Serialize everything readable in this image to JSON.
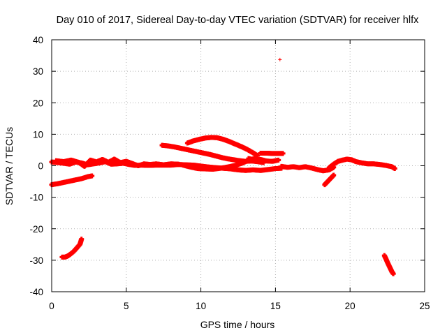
{
  "chart_data": {
    "type": "scatter",
    "title": "Day 010 of 2017, Sidereal Day-to-day VTEC variation (SDTVAR) for receiver hlfx",
    "xlabel": "GPS time / hours",
    "ylabel": "SDTVAR / TECUs",
    "xlim": [
      0,
      25
    ],
    "ylim": [
      -40,
      40
    ],
    "xticks": [
      0,
      5,
      10,
      15,
      20,
      25
    ],
    "yticks": [
      -40,
      -30,
      -20,
      -10,
      0,
      10,
      20,
      30,
      40
    ],
    "grid": true,
    "marker": "+",
    "color": "#ff0000",
    "series": [
      {
        "name": "arc-main-1",
        "values": [
          [
            0.0,
            1.2
          ],
          [
            0.4,
            1.0
          ],
          [
            0.8,
            0.8
          ],
          [
            1.2,
            0.5
          ],
          [
            1.6,
            1.2
          ],
          [
            2.0,
            0.9
          ],
          [
            2.4,
            0.3
          ],
          [
            2.8,
            0.6
          ],
          [
            3.2,
            0.9
          ],
          [
            3.6,
            1.3
          ],
          [
            4.0,
            0.5
          ],
          [
            4.4,
            0.6
          ],
          [
            4.8,
            0.8
          ],
          [
            5.2,
            0.4
          ],
          [
            5.6,
            0.1
          ],
          [
            6.0,
            0.2
          ],
          [
            6.5,
            0.1
          ],
          [
            7.0,
            0.2
          ],
          [
            7.5,
            0.2
          ],
          [
            8.0,
            0.2
          ],
          [
            8.5,
            0.4
          ],
          [
            9.0,
            0.3
          ],
          [
            9.5,
            0.2
          ],
          [
            10.0,
            -0.1
          ],
          [
            10.5,
            -0.4
          ],
          [
            11.0,
            -0.6
          ],
          [
            11.5,
            -0.8
          ],
          [
            12.0,
            -1.0
          ],
          [
            12.5,
            -1.3
          ],
          [
            13.0,
            -1.5
          ],
          [
            13.5,
            -1.3
          ],
          [
            14.0,
            -1.5
          ],
          [
            14.5,
            -1.2
          ],
          [
            15.0,
            -0.9
          ],
          [
            15.4,
            -0.8
          ]
        ]
      },
      {
        "name": "arc-main-2",
        "values": [
          [
            0.3,
            1.6
          ],
          [
            0.8,
            1.3
          ],
          [
            1.3,
            1.8
          ],
          [
            1.8,
            1.1
          ],
          [
            2.2,
            -0.2
          ],
          [
            2.6,
            1.8
          ],
          [
            3.0,
            1.2
          ],
          [
            3.4,
            2.0
          ],
          [
            3.8,
            1.1
          ],
          [
            4.2,
            2.1
          ],
          [
            4.6,
            1.0
          ],
          [
            5.0,
            1.4
          ],
          [
            5.4,
            0.7
          ],
          [
            5.8,
            0.0
          ],
          [
            6.2,
            0.6
          ],
          [
            6.6,
            0.4
          ],
          [
            7.0,
            0.6
          ],
          [
            7.5,
            0.3
          ],
          [
            8.0,
            0.6
          ],
          [
            8.5,
            0.5
          ]
        ]
      },
      {
        "name": "arc-upper",
        "values": [
          [
            7.4,
            6.5
          ],
          [
            7.8,
            6.3
          ],
          [
            8.2,
            6.0
          ],
          [
            8.6,
            5.6
          ],
          [
            9.0,
            5.2
          ],
          [
            9.4,
            4.8
          ],
          [
            9.8,
            4.4
          ],
          [
            10.2,
            4.0
          ],
          [
            10.6,
            3.6
          ],
          [
            11.0,
            3.1
          ],
          [
            11.4,
            2.6
          ],
          [
            11.8,
            2.2
          ],
          [
            12.2,
            1.9
          ],
          [
            12.6,
            1.6
          ],
          [
            13.0,
            1.4
          ],
          [
            13.4,
            1.5
          ],
          [
            13.8,
            1.3
          ],
          [
            14.2,
            1.0
          ]
        ]
      },
      {
        "name": "arc-peak",
        "values": [
          [
            9.1,
            7.2
          ],
          [
            9.5,
            7.9
          ],
          [
            9.9,
            8.4
          ],
          [
            10.3,
            8.8
          ],
          [
            10.7,
            9.0
          ],
          [
            11.1,
            8.9
          ],
          [
            11.5,
            8.4
          ],
          [
            11.9,
            7.7
          ],
          [
            12.3,
            6.9
          ],
          [
            12.7,
            6.1
          ],
          [
            13.1,
            5.2
          ],
          [
            13.5,
            4.1
          ],
          [
            13.8,
            3.2
          ]
        ]
      },
      {
        "name": "arc-center-lower",
        "values": [
          [
            8.8,
            0.2
          ],
          [
            9.3,
            -0.4
          ],
          [
            9.8,
            -0.9
          ],
          [
            10.3,
            -1.0
          ],
          [
            10.8,
            -1.1
          ],
          [
            11.3,
            -0.8
          ],
          [
            11.8,
            -0.4
          ],
          [
            12.3,
            0.1
          ],
          [
            12.8,
            0.9
          ],
          [
            13.3,
            2.0
          ],
          [
            13.8,
            2.4
          ]
        ]
      },
      {
        "name": "arc-1430-1530",
        "values": [
          [
            14.0,
            4.0
          ],
          [
            14.4,
            4.0
          ],
          [
            14.8,
            3.9
          ],
          [
            15.2,
            3.9
          ],
          [
            15.5,
            3.9
          ]
        ]
      },
      {
        "name": "arc-1315-1530",
        "values": [
          [
            13.2,
            2.3
          ],
          [
            13.6,
            1.8
          ],
          [
            14.0,
            2.0
          ],
          [
            14.4,
            1.5
          ],
          [
            14.8,
            1.4
          ],
          [
            15.2,
            1.8
          ]
        ]
      },
      {
        "name": "arc-1530-1900",
        "values": [
          [
            15.4,
            -0.2
          ],
          [
            15.8,
            -0.5
          ],
          [
            16.2,
            -0.3
          ],
          [
            16.6,
            -0.6
          ],
          [
            17.0,
            -0.3
          ],
          [
            17.4,
            -0.7
          ],
          [
            17.8,
            -1.2
          ],
          [
            18.2,
            -1.6
          ],
          [
            18.6,
            -1.3
          ],
          [
            18.9,
            -0.5
          ]
        ]
      },
      {
        "name": "arc-1830-1900-neg",
        "values": [
          [
            18.3,
            -6.0
          ],
          [
            18.5,
            -5.0
          ],
          [
            18.7,
            -4.0
          ],
          [
            18.9,
            -3.0
          ]
        ]
      },
      {
        "name": "arc-1800-2300",
        "values": [
          [
            18.6,
            -0.6
          ],
          [
            18.9,
            0.5
          ],
          [
            19.2,
            1.4
          ],
          [
            19.5,
            1.8
          ],
          [
            19.8,
            2.1
          ],
          [
            20.1,
            1.9
          ],
          [
            20.4,
            1.3
          ],
          [
            20.8,
            0.9
          ],
          [
            21.2,
            0.6
          ],
          [
            21.6,
            0.6
          ],
          [
            22.0,
            0.4
          ],
          [
            22.4,
            0.1
          ],
          [
            22.8,
            -0.3
          ],
          [
            23.0,
            -0.9
          ]
        ]
      },
      {
        "name": "arc-early-neg",
        "values": [
          [
            0.0,
            -6.0
          ],
          [
            0.4,
            -5.7
          ],
          [
            0.8,
            -5.3
          ],
          [
            1.2,
            -4.9
          ],
          [
            1.6,
            -4.5
          ],
          [
            2.0,
            -4.1
          ],
          [
            2.4,
            -3.5
          ],
          [
            2.7,
            -3.2
          ]
        ]
      },
      {
        "name": "arc-fall-1",
        "values": [
          [
            0.7,
            -29.0
          ],
          [
            0.9,
            -29.0
          ],
          [
            1.1,
            -28.6
          ],
          [
            1.3,
            -27.9
          ],
          [
            1.5,
            -27.1
          ],
          [
            1.7,
            -26.0
          ],
          [
            1.9,
            -24.9
          ],
          [
            2.0,
            -23.3
          ]
        ]
      },
      {
        "name": "arc-fall-2",
        "values": [
          [
            22.3,
            -28.5
          ],
          [
            22.4,
            -29.5
          ],
          [
            22.5,
            -30.6
          ],
          [
            22.6,
            -31.6
          ],
          [
            22.7,
            -32.6
          ],
          [
            22.8,
            -33.6
          ],
          [
            22.9,
            -34.3
          ]
        ]
      },
      {
        "name": "outlier",
        "values": [
          [
            15.3,
            33.7
          ]
        ]
      }
    ]
  }
}
